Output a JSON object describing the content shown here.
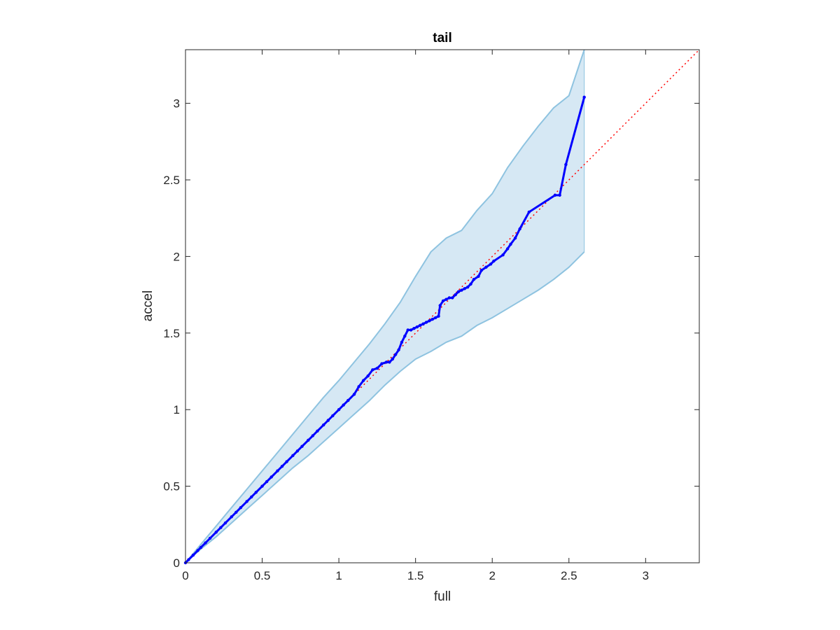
{
  "chart_data": {
    "type": "scatter",
    "title": "tail",
    "xlabel": "full",
    "ylabel": "accel",
    "xlim": [
      0,
      3.35
    ],
    "ylim": [
      0,
      3.35
    ],
    "x_ticks": [
      "0",
      "0.5",
      "1",
      "1.5",
      "2",
      "2.5",
      "3"
    ],
    "y_ticks": [
      "0",
      "0.5",
      "1",
      "1.5",
      "2",
      "2.5",
      "3"
    ],
    "grid": false,
    "reference_line": {
      "style": "dotted",
      "color": "#ff0000",
      "points": [
        [
          0,
          0
        ],
        [
          3.35,
          3.35
        ]
      ]
    },
    "confidence_band": {
      "color": "#d6e8f4",
      "edge_color": "#8ec3e0",
      "x": [
        0,
        0.1,
        0.2,
        0.3,
        0.4,
        0.5,
        0.6,
        0.7,
        0.8,
        0.9,
        1.0,
        1.1,
        1.2,
        1.3,
        1.4,
        1.5,
        1.6,
        1.7,
        1.8,
        1.9,
        2.0,
        2.1,
        2.2,
        2.3,
        2.4,
        2.5,
        2.6
      ],
      "upper": [
        0,
        0.12,
        0.24,
        0.36,
        0.48,
        0.6,
        0.72,
        0.84,
        0.96,
        1.08,
        1.19,
        1.31,
        1.43,
        1.56,
        1.7,
        1.87,
        2.03,
        2.12,
        2.17,
        2.3,
        2.41,
        2.58,
        2.72,
        2.85,
        2.97,
        3.05,
        3.35
      ],
      "lower": [
        0,
        0.09,
        0.17,
        0.26,
        0.35,
        0.44,
        0.53,
        0.62,
        0.7,
        0.79,
        0.88,
        0.97,
        1.06,
        1.16,
        1.25,
        1.33,
        1.38,
        1.44,
        1.48,
        1.55,
        1.6,
        1.66,
        1.72,
        1.78,
        1.85,
        1.93,
        2.03
      ]
    },
    "series": [
      {
        "color": "#0000ff",
        "x": [
          0,
          0.02,
          0.05,
          0.08,
          0.1,
          0.13,
          0.16,
          0.2,
          0.23,
          0.26,
          0.3,
          0.33,
          0.36,
          0.4,
          0.43,
          0.46,
          0.5,
          0.53,
          0.56,
          0.6,
          0.63,
          0.66,
          0.7,
          0.73,
          0.76,
          0.8,
          0.83,
          0.86,
          0.9,
          0.93,
          0.96,
          1.0,
          1.03,
          1.06,
          1.1,
          1.13,
          1.16,
          1.19,
          1.22,
          1.25,
          1.28,
          1.31,
          1.33,
          1.35,
          1.37,
          1.39,
          1.41,
          1.43,
          1.45,
          1.47,
          1.49,
          1.51,
          1.53,
          1.55,
          1.57,
          1.59,
          1.61,
          1.63,
          1.65,
          1.66,
          1.68,
          1.7,
          1.72,
          1.74,
          1.76,
          1.78,
          1.8,
          1.82,
          1.84,
          1.86,
          1.88,
          1.91,
          1.93,
          1.96,
          1.99,
          2.01,
          2.07,
          2.1,
          2.12,
          2.15,
          2.18,
          2.24,
          2.41,
          2.44,
          2.48,
          2.6
        ],
        "y": [
          0,
          0.02,
          0.05,
          0.08,
          0.1,
          0.13,
          0.16,
          0.2,
          0.23,
          0.26,
          0.3,
          0.33,
          0.36,
          0.4,
          0.43,
          0.46,
          0.5,
          0.53,
          0.56,
          0.6,
          0.63,
          0.66,
          0.7,
          0.73,
          0.76,
          0.8,
          0.83,
          0.86,
          0.9,
          0.93,
          0.96,
          1.0,
          1.03,
          1.06,
          1.1,
          1.15,
          1.19,
          1.22,
          1.26,
          1.27,
          1.3,
          1.31,
          1.31,
          1.33,
          1.36,
          1.39,
          1.44,
          1.48,
          1.52,
          1.52,
          1.53,
          1.54,
          1.55,
          1.56,
          1.57,
          1.58,
          1.59,
          1.6,
          1.61,
          1.68,
          1.71,
          1.72,
          1.73,
          1.73,
          1.75,
          1.77,
          1.78,
          1.79,
          1.8,
          1.82,
          1.85,
          1.87,
          1.91,
          1.93,
          1.95,
          1.97,
          2.01,
          2.05,
          2.08,
          2.12,
          2.18,
          2.29,
          2.4,
          2.4,
          2.6,
          3.04
        ]
      }
    ]
  }
}
